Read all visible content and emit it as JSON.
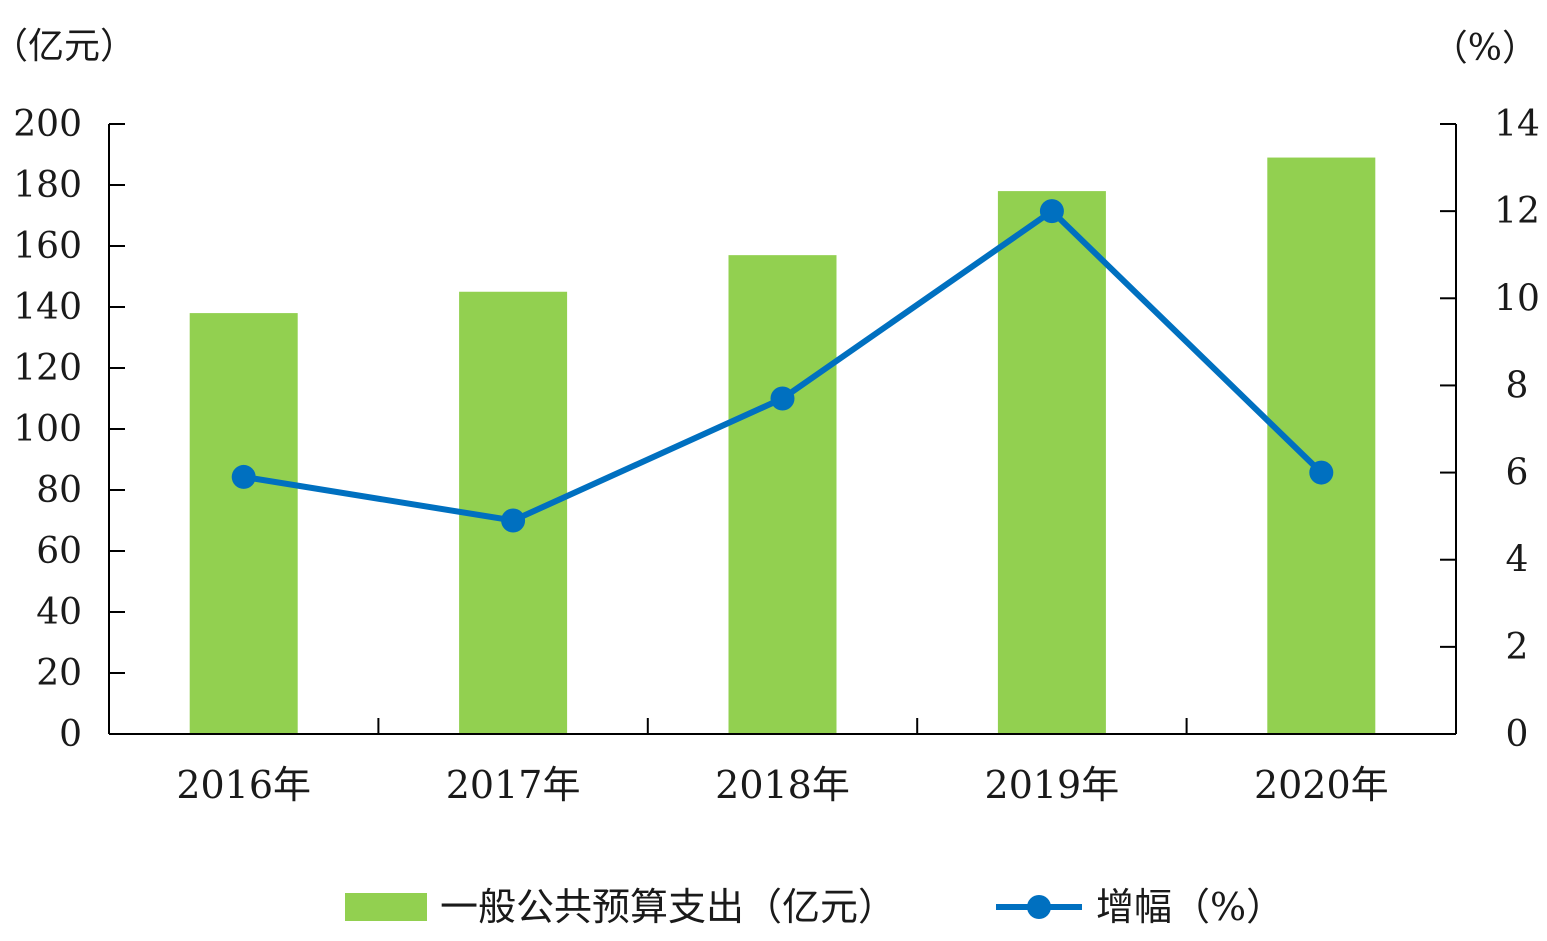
{
  "chart_data": {
    "type": "bar",
    "categories": [
      "2016年",
      "2017年",
      "2018年",
      "2019年",
      "2020年"
    ],
    "series": [
      {
        "name": "一般公共预算支出（亿元）",
        "type": "bar",
        "axis": "left",
        "values": [
          138,
          145,
          157,
          178,
          189
        ],
        "color": "#92d050"
      },
      {
        "name": "增幅（%）",
        "type": "line",
        "axis": "right",
        "values": [
          5.9,
          4.9,
          7.7,
          12.0,
          6.0
        ],
        "color": "#0070c0"
      }
    ],
    "ylim_left": [
      0,
      200
    ],
    "yticks_left": [
      "0",
      "20",
      "40",
      "60",
      "80",
      "100",
      "120",
      "140",
      "160",
      "180",
      "200"
    ],
    "ylim_right": [
      0,
      14
    ],
    "yticks_right": [
      "0",
      "2",
      "4",
      "6",
      "8",
      "10",
      "12",
      "14"
    ],
    "ylabel_left": "（亿元）",
    "ylabel_right": "（%）",
    "grid": false,
    "legend_position": "bottom"
  }
}
